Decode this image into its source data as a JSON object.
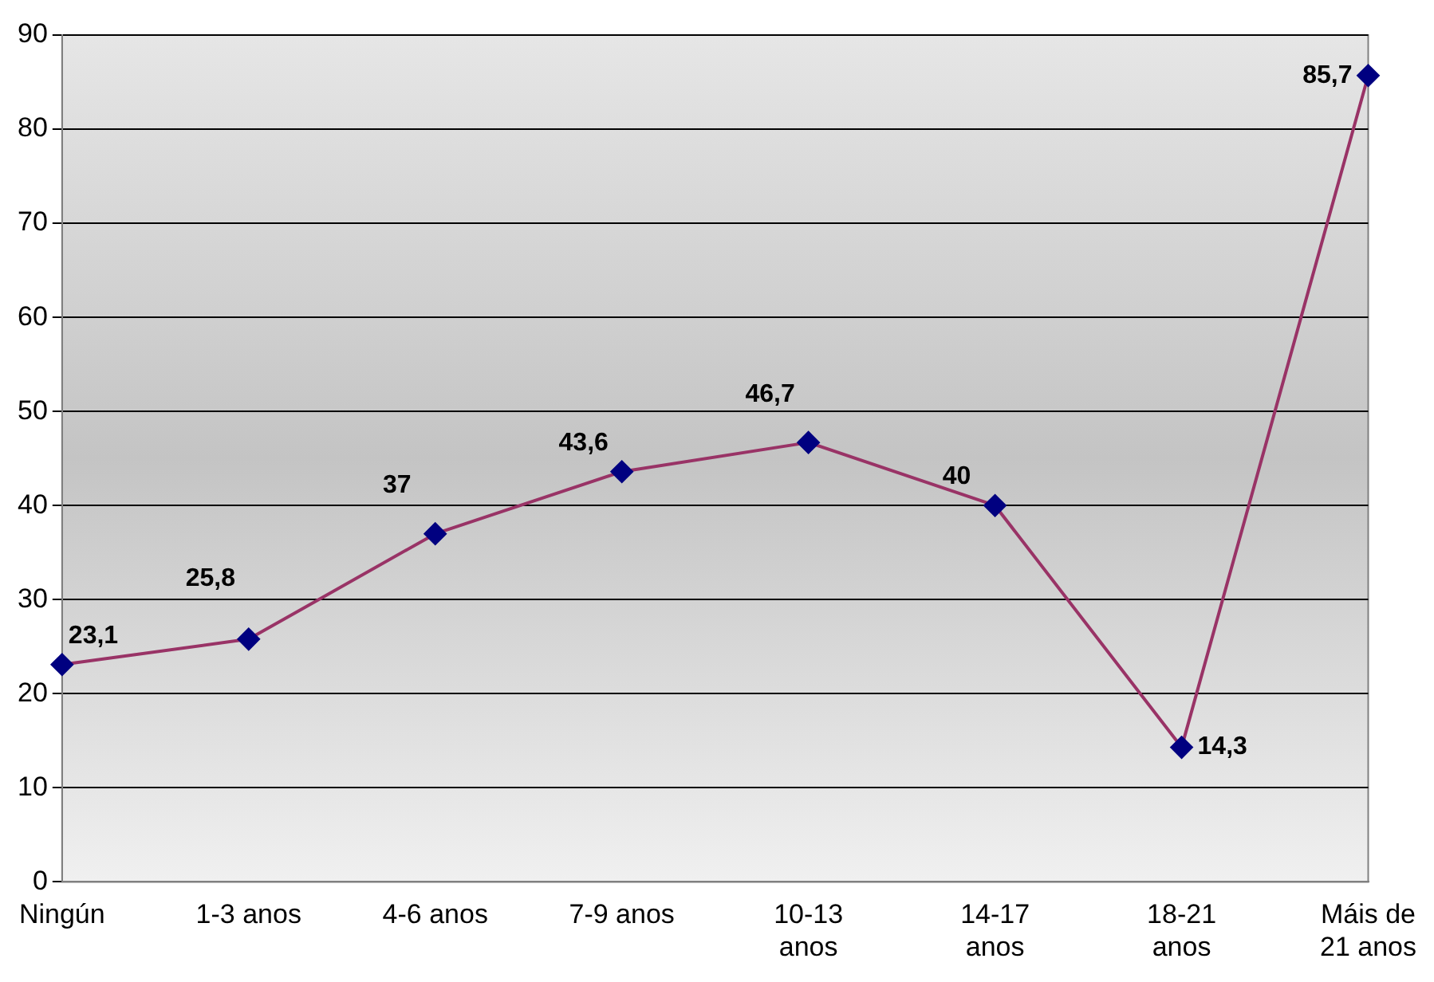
{
  "chart_data": {
    "type": "line",
    "categories": [
      "Ningún",
      "1-3 anos",
      "4-6 anos",
      "7-9 anos",
      "10-13 anos",
      "14-17 anos",
      "18-21 anos",
      "Máis de 21 anos"
    ],
    "series": [
      {
        "color": "#993366",
        "values": [
          23.1,
          25.8,
          37,
          43.6,
          46.7,
          40,
          14.3,
          85.7
        ],
        "value_labels": [
          "23,1",
          "25,8",
          "37",
          "43,6",
          "46,7",
          "40",
          "14,3",
          "85,7"
        ]
      }
    ],
    "ylim": [
      0,
      90
    ],
    "yticks": [
      0,
      10,
      20,
      30,
      40,
      50,
      60,
      70,
      80,
      90
    ],
    "grid": "y",
    "legend": false,
    "marker": "diamond",
    "line_style": "solid"
  }
}
